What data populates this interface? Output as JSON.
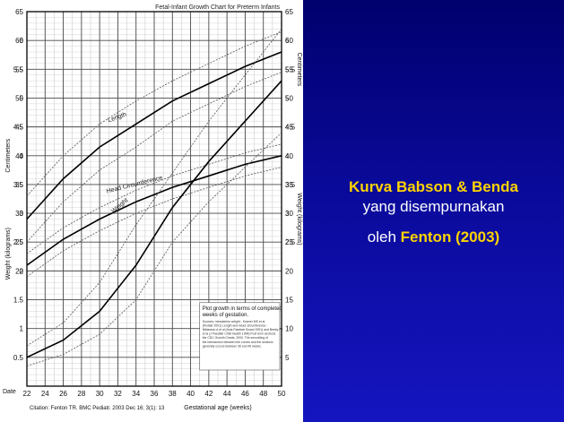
{
  "chart_data": {
    "type": "line",
    "title": "Fetal-Infant Growth Chart for Preterm Infants",
    "xlabel": "Gestational age (weeks)",
    "x_ticks": [
      22,
      24,
      26,
      28,
      30,
      32,
      34,
      36,
      38,
      40,
      42,
      44,
      46,
      48,
      50
    ],
    "x_range": [
      22,
      50
    ],
    "left_axis_label_top": "Centimeters",
    "left_axis_label_bottom": "Weight (kilograms)",
    "right_axis_label_top": "Centimeters",
    "right_axis_label_bottom": "Weight (kilograms)",
    "cm_ticks": [
      5,
      10,
      15,
      20,
      25,
      30,
      35,
      40,
      45,
      50,
      55,
      60,
      65
    ],
    "cm_range": [
      0,
      65
    ],
    "kg_ticks_left": [
      0.5,
      1,
      1.5,
      2,
      2.5,
      3,
      3.5,
      4,
      4.5,
      5,
      5.5,
      6
    ],
    "kg_ticks_right": [
      2.5,
      3,
      3.5,
      4,
      4.5,
      5,
      5.5,
      6
    ],
    "kg_range": [
      0,
      6.5
    ],
    "x_corner_label": "Date",
    "grid": true,
    "curve_labels": {
      "length": "Length",
      "head": "Head Circumference",
      "weight": "Weight"
    },
    "series": [
      {
        "group": "length",
        "kind": "median",
        "x": [
          22,
          26,
          30,
          34,
          38,
          42,
          46,
          50
        ],
        "values": [
          29,
          36,
          41.5,
          45.5,
          49.5,
          52.5,
          55.5,
          58
        ]
      },
      {
        "group": "length",
        "kind": "upper",
        "x": [
          22,
          26,
          30,
          34,
          38,
          42,
          46,
          50
        ],
        "values": [
          33,
          40,
          45.5,
          49.5,
          53,
          56,
          59,
          61.5
        ]
      },
      {
        "group": "length",
        "kind": "lower",
        "x": [
          22,
          26,
          30,
          34,
          38,
          42,
          46,
          50
        ],
        "values": [
          25,
          32,
          37.5,
          41.5,
          46,
          49,
          52,
          54.5
        ]
      },
      {
        "group": "head",
        "kind": "median",
        "x": [
          22,
          26,
          30,
          34,
          38,
          42,
          46,
          50
        ],
        "values": [
          21,
          25.5,
          29,
          32,
          34.5,
          36.5,
          38.5,
          40
        ]
      },
      {
        "group": "head",
        "kind": "upper",
        "x": [
          22,
          26,
          30,
          34,
          38,
          42,
          46,
          50
        ],
        "values": [
          23,
          27.5,
          31,
          34,
          36.5,
          38.5,
          40.5,
          42
        ]
      },
      {
        "group": "head",
        "kind": "lower",
        "x": [
          22,
          26,
          30,
          34,
          38,
          42,
          46,
          50
        ],
        "values": [
          19,
          23.5,
          27,
          30,
          32.5,
          34.5,
          36.5,
          38
        ]
      },
      {
        "group": "weight",
        "kind": "median",
        "x": [
          22,
          26,
          30,
          34,
          38,
          42,
          46,
          50
        ],
        "values": [
          0.5,
          0.8,
          1.3,
          2.1,
          3.1,
          3.9,
          4.6,
          5.3
        ]
      },
      {
        "group": "weight",
        "kind": "upper",
        "x": [
          22,
          26,
          30,
          34,
          38,
          42,
          46,
          50
        ],
        "values": [
          0.7,
          1.1,
          1.8,
          2.8,
          3.7,
          4.6,
          5.4,
          6.2
        ]
      },
      {
        "group": "weight",
        "kind": "lower",
        "x": [
          22,
          26,
          30,
          34,
          38,
          42,
          46,
          50
        ],
        "values": [
          0.35,
          0.55,
          0.9,
          1.5,
          2.5,
          3.2,
          3.8,
          4.4
        ]
      }
    ],
    "legend_box": {
      "heading_line1": "Plot growth in terms of completed",
      "heading_line2": "weeks of gestation.",
      "notes": [
        "Sources: intrauterine weight - Kramer MS et al",
        "(Pediatr 2001) Length and Head circumference -",
        "Niklasson A et al (Acta Paediatr Scand 1991) and Beeby PJ",
        "et al (J Paediatr Child Health 1996) Post term sections",
        "the CDC Growth Charts, 2000. The smoothing of",
        "the intersection between the curves and the sections",
        "generally occurs between 36 and 46 weeks."
      ]
    },
    "citation": "Citation: Fenton TR. BMC Pediatr. 2003 Dec 16; 3(1): 13"
  },
  "caption": {
    "title": "Kurva Babson & Benda",
    "line2": "yang disempurnakan",
    "line3_prefix": "oleh ",
    "line3_highlight": "Fenton (2003)"
  }
}
